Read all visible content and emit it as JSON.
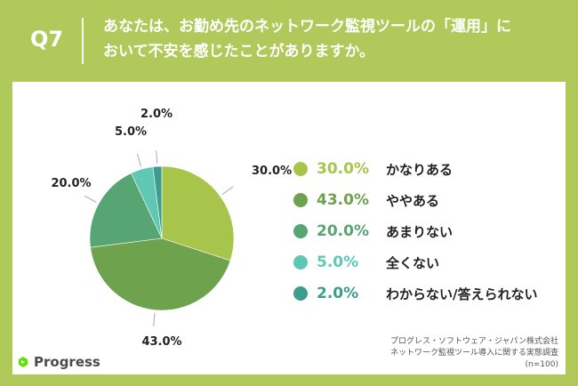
{
  "header": {
    "question_number": "Q7",
    "title_line1": "あなたは、お勤め先のネットワーク監視ツールの「運用」に",
    "title_line2": "おいて不安を感じたことがありますか。"
  },
  "chart_data": {
    "type": "pie",
    "categories": [
      "かなりある",
      "ややある",
      "あまりない",
      "全くない",
      "わからない/答えられない"
    ],
    "values": [
      30.0,
      43.0,
      20.0,
      5.0,
      2.0
    ],
    "value_labels": [
      "30.0%",
      "43.0%",
      "20.0%",
      "5.0%",
      "2.0%"
    ],
    "colors": [
      "#a8c54b",
      "#6ea24d",
      "#56a572",
      "#5fc7b2",
      "#3e9c8c"
    ],
    "legend": "right"
  },
  "footnote": {
    "line1": "プログレス・ソフトウェア・ジャパン株式会社",
    "line2": "ネットワーク監視ツール導入に関する実態調査",
    "line3": "(n=100)"
  },
  "brand": {
    "name": "Progress",
    "icon": "progress-logo-icon"
  }
}
